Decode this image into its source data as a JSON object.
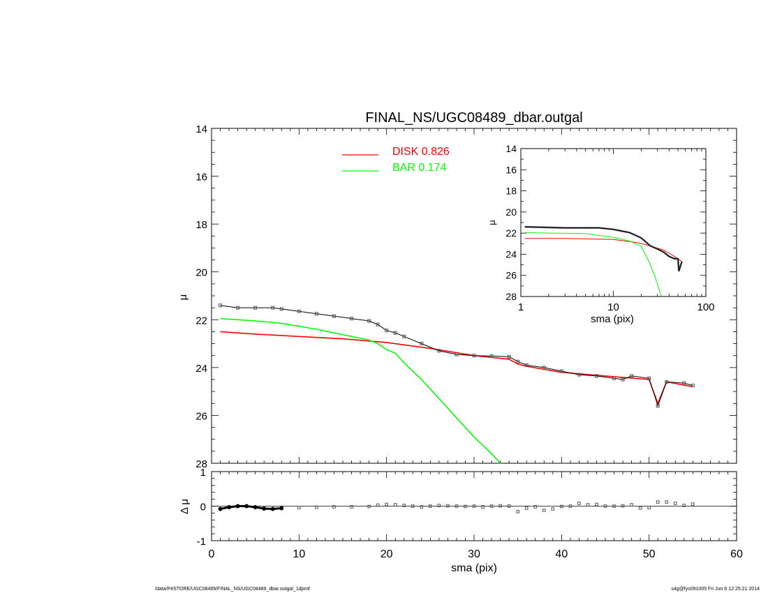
{
  "chart_data": [
    {
      "type": "line",
      "title": "FINAL_NS/UGC08489_dbar.outgal",
      "xlabel": "",
      "ylabel": "μ",
      "xlim": [
        0,
        60
      ],
      "ylim": [
        28,
        14
      ],
      "yticks": [
        14,
        16,
        18,
        20,
        22,
        24,
        26,
        28
      ],
      "legend": [
        {
          "label": "DISK  0.826",
          "color": "#ff0000"
        },
        {
          "label": "BAR  0.174",
          "color": "#00ff00"
        }
      ],
      "series": [
        {
          "name": "DISK  0.826",
          "color": "#ff0000",
          "x": [
            1,
            5,
            10,
            15,
            20,
            25,
            30,
            34,
            35,
            36,
            40,
            45,
            50,
            51,
            52,
            55
          ],
          "y": [
            22.5,
            22.6,
            22.7,
            22.8,
            22.95,
            23.2,
            23.5,
            23.65,
            23.85,
            23.95,
            24.2,
            24.35,
            24.5,
            25.5,
            24.6,
            24.8
          ]
        },
        {
          "name": "BAR  0.174",
          "color": "#00ff00",
          "x": [
            1,
            5,
            8,
            12,
            16,
            18,
            19,
            20,
            21,
            22,
            24,
            26,
            28,
            30,
            32,
            33
          ],
          "y": [
            21.95,
            22.05,
            22.15,
            22.4,
            22.7,
            22.85,
            23.0,
            23.25,
            23.4,
            23.8,
            24.5,
            25.3,
            26.1,
            26.9,
            27.6,
            28.0
          ]
        },
        {
          "name": "",
          "color": "#000000",
          "x": [
            1,
            3,
            5,
            7,
            8,
            10,
            12,
            14,
            16,
            18,
            19,
            20,
            21,
            22,
            24,
            26,
            28,
            30,
            32,
            34,
            35,
            36,
            38,
            40,
            42,
            44,
            46,
            47,
            48,
            50,
            51,
            52,
            54,
            55
          ],
          "y": [
            21.4,
            21.5,
            21.5,
            21.5,
            21.55,
            21.65,
            21.75,
            21.85,
            21.95,
            22.05,
            22.2,
            22.45,
            22.55,
            22.7,
            23.0,
            23.3,
            23.45,
            23.5,
            23.52,
            23.55,
            23.75,
            23.9,
            24.0,
            24.15,
            24.3,
            24.35,
            24.45,
            24.5,
            24.35,
            24.45,
            25.6,
            24.6,
            24.65,
            24.75
          ]
        }
      ]
    },
    {
      "type": "line",
      "title": "",
      "xlabel": "sma (pix)",
      "ylabel": "μ",
      "xscale": "log",
      "xlim": [
        1,
        100
      ],
      "ylim": [
        28,
        14
      ],
      "xtick_labels": [
        "1",
        "10",
        "100"
      ],
      "yticks": [
        14,
        16,
        18,
        20,
        22,
        24,
        26,
        28
      ],
      "series": [
        {
          "name": "",
          "color": "#ff0000",
          "x": [
            1.1,
            3,
            10,
            18,
            25,
            35,
            50,
            55
          ],
          "y": [
            22.5,
            22.5,
            22.6,
            22.9,
            23.2,
            23.6,
            24.4,
            24.7
          ]
        },
        {
          "name": "",
          "color": "#00ff00",
          "x": [
            1.1,
            5,
            10,
            15,
            20,
            24,
            28,
            33
          ],
          "y": [
            21.95,
            22.05,
            22.4,
            22.75,
            23.25,
            24.6,
            26.0,
            28.0
          ]
        },
        {
          "name": "",
          "color": "#000000",
          "x": [
            1.1,
            3,
            7,
            10,
            15,
            20,
            25,
            30,
            35,
            40,
            45,
            50,
            51,
            55
          ],
          "y": [
            21.4,
            21.5,
            21.5,
            21.65,
            21.95,
            22.45,
            23.2,
            23.5,
            23.8,
            24.2,
            24.4,
            24.45,
            25.6,
            24.7
          ]
        }
      ]
    },
    {
      "type": "scatter",
      "title": "",
      "xlabel": "sma (pix)",
      "ylabel": "Δ μ",
      "xlim": [
        0,
        60
      ],
      "ylim": [
        -1,
        1
      ],
      "xticks": [
        0,
        10,
        20,
        30,
        40,
        50,
        60
      ],
      "yticks": [
        -1,
        0,
        1
      ],
      "series": [
        {
          "name": "",
          "color": "#000000",
          "x": [
            1,
            2,
            3,
            4,
            5,
            6,
            7,
            8,
            10,
            12,
            14,
            16,
            18,
            19,
            20,
            21,
            22,
            23,
            24,
            25,
            26,
            27,
            28,
            29,
            30,
            31,
            32,
            33,
            34,
            35,
            36,
            37,
            38,
            39,
            40,
            41,
            42,
            43,
            44,
            45,
            46,
            47,
            48,
            49,
            50,
            51,
            52,
            53,
            54,
            55
          ],
          "y": [
            -0.08,
            -0.03,
            0.0,
            0.0,
            -0.03,
            -0.07,
            -0.08,
            -0.06,
            -0.04,
            -0.03,
            -0.02,
            -0.02,
            -0.01,
            0.03,
            0.05,
            0.04,
            0.02,
            0.0,
            -0.02,
            0.0,
            0.02,
            0.01,
            0.0,
            -0.01,
            0.0,
            -0.02,
            0.0,
            0.01,
            0.0,
            -0.16,
            -0.06,
            -0.02,
            -0.12,
            -0.08,
            -0.01,
            0.0,
            0.08,
            0.04,
            0.05,
            0.0,
            0.0,
            0.01,
            0.04,
            -0.05,
            -0.04,
            0.12,
            0.12,
            0.08,
            0.02,
            0.06
          ]
        }
      ]
    }
  ],
  "footer": {
    "path": "/data/P4STORE/UGC08489/FINAL_NS/UGC08489_dbar.outgal_1dprof",
    "stamp": "s4g@fys091005  Fri Jun  6 12:25:21 2014"
  }
}
